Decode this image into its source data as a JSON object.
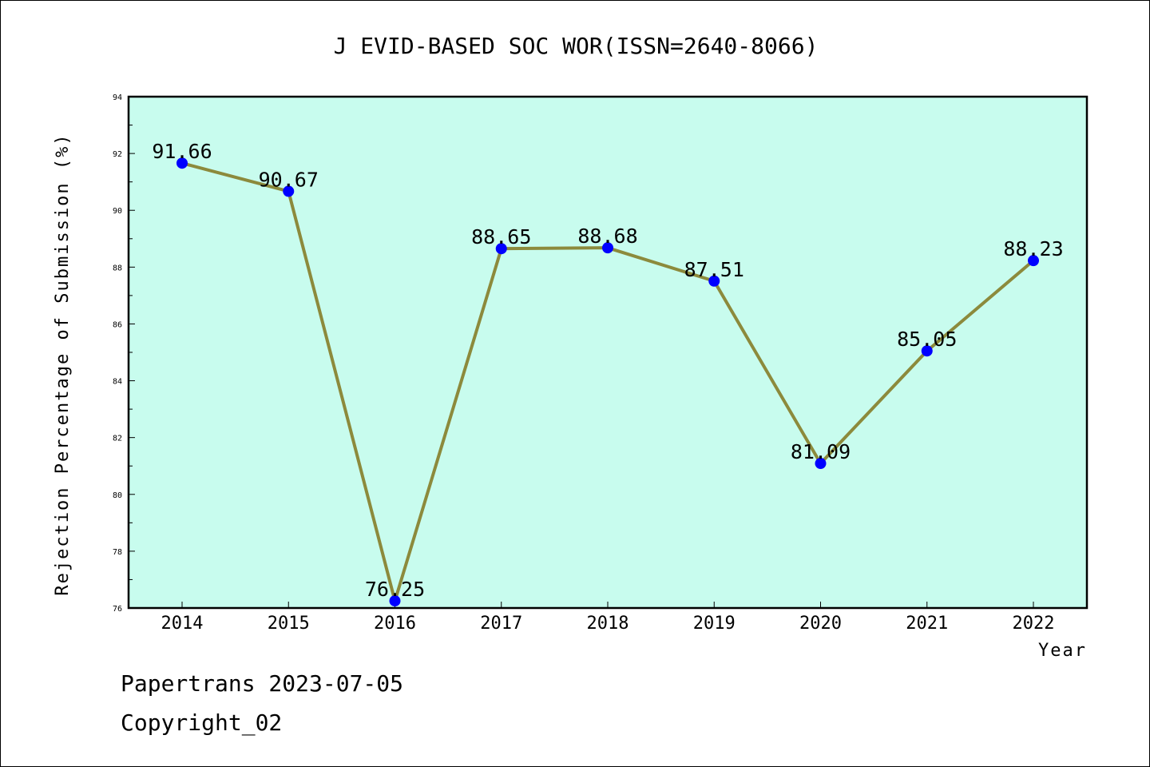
{
  "chart_data": {
    "type": "line",
    "title": "J EVID-BASED SOC WOR(ISSN=2640-8066)",
    "xlabel": "Year",
    "ylabel": "Rejection Percentage of Submission (%)",
    "categories": [
      "2014",
      "2015",
      "2016",
      "2017",
      "2018",
      "2019",
      "2020",
      "2021",
      "2022"
    ],
    "values": [
      91.66,
      90.67,
      76.25,
      88.65,
      88.68,
      87.51,
      81.09,
      85.05,
      88.23
    ],
    "data_labels": [
      "91.66",
      "90.67",
      "76.25",
      "88.65",
      "88.68",
      "87.51",
      "81.09",
      "85.05",
      "88.23"
    ],
    "ylim": [
      76,
      94
    ],
    "yticks": [
      "76",
      "78",
      "80",
      "82",
      "84",
      "86",
      "88",
      "90",
      "92",
      "94"
    ],
    "grid": false,
    "legend": "none",
    "colors": {
      "plot_background": "#c8fcee",
      "line": "#8c8a3c",
      "marker": "#0000ff"
    }
  },
  "footer": {
    "line1": "Papertrans 2023-07-05",
    "line2": "Copyright_02"
  }
}
